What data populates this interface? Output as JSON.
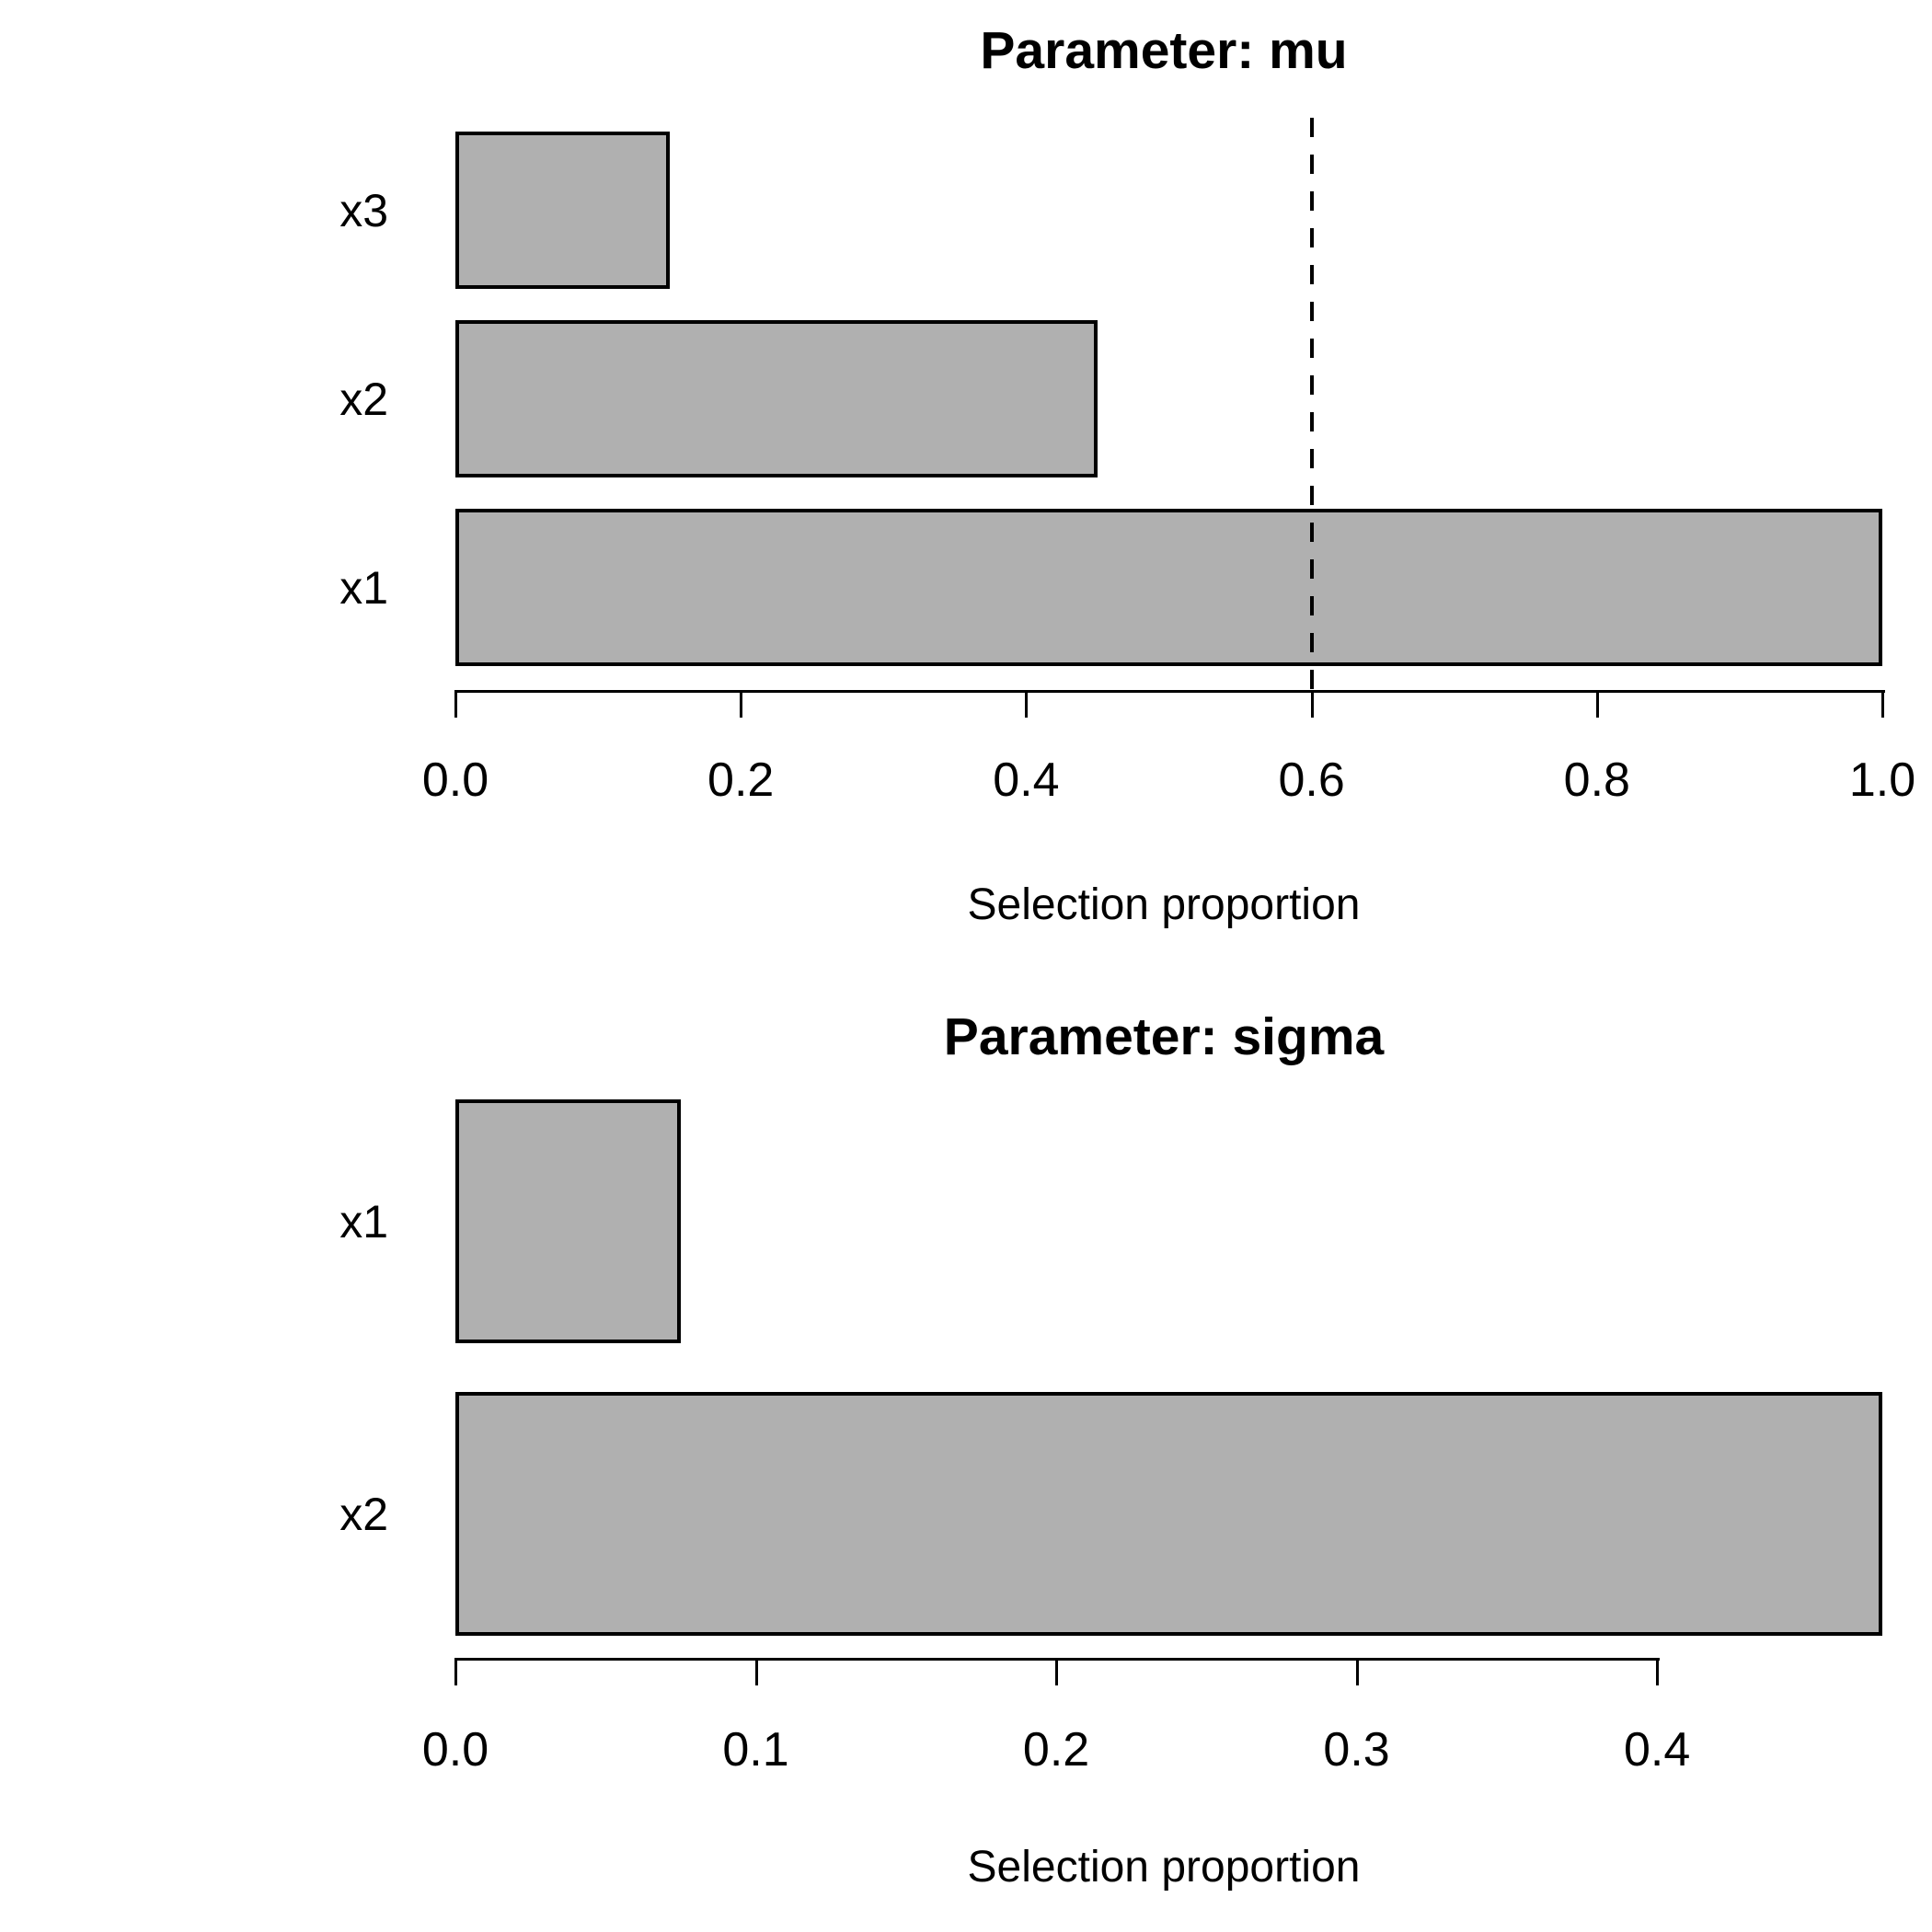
{
  "figure": {
    "background_color": "#ffffff",
    "text_color": "#000000"
  },
  "chart_data": [
    {
      "type": "bar",
      "orientation": "horizontal",
      "title": "Parameter: mu",
      "xlabel": "Selection proportion",
      "categories": [
        "x3",
        "x2",
        "x1"
      ],
      "values": [
        0.15,
        0.45,
        1.0
      ],
      "x_tick_values": [
        0.0,
        0.2,
        0.4,
        0.6,
        0.8,
        1.0
      ],
      "x_tick_labels": [
        "0.0",
        "0.2",
        "0.4",
        "0.6",
        "0.8",
        "1.0"
      ],
      "xlim": [
        0.0,
        1.0
      ],
      "axis_end_value": 1.0,
      "reference_line": {
        "value": 0.6,
        "style": "dashed",
        "color": "#000000"
      },
      "bar_color": "#b0b0b0",
      "bar_border_color": "#000000",
      "grid": false,
      "legend": false
    },
    {
      "type": "bar",
      "orientation": "horizontal",
      "title": "Parameter: sigma",
      "xlabel": "Selection proportion",
      "categories": [
        "x1",
        "x2"
      ],
      "values": [
        0.075,
        0.475
      ],
      "x_tick_values": [
        0.0,
        0.1,
        0.2,
        0.3,
        0.4
      ],
      "x_tick_labels": [
        "0.0",
        "0.1",
        "0.2",
        "0.3",
        "0.4"
      ],
      "xlim": [
        0.0,
        0.475
      ],
      "axis_end_value": 0.4,
      "reference_line": null,
      "bar_color": "#b0b0b0",
      "bar_border_color": "#000000",
      "grid": false,
      "legend": false
    }
  ]
}
